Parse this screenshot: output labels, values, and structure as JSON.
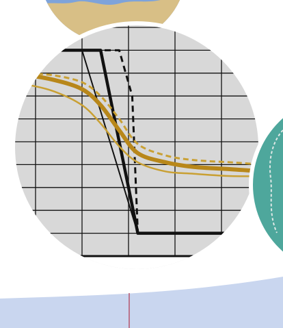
{
  "colors": {
    "background_band": "#c9d6ef",
    "map_blue": "#7ea3da",
    "map_sand": "#d8bf86",
    "map_teal": "#4ea79c",
    "plot_bg": "#d8d8d8",
    "grid": "#111111",
    "frame": "#ffffff",
    "black_series": "#111111",
    "gold_series": "#b8871a",
    "gold_light": "#c9a033",
    "pointer_line": "#b0344a",
    "tick_text": "#1f2d3a"
  },
  "chart_data": {
    "type": "line",
    "title": "",
    "xlabel": "",
    "ylabel": "",
    "x_ticks": [
      1000,
      1025,
      1050,
      1075
    ],
    "xlim": [
      957,
      1120
    ],
    "ylim": [
      0,
      1
    ],
    "grid": true,
    "series": [
      {
        "style": "black-solid-thick",
        "x": [
          957,
          1000,
          1010,
          1030,
          1120
        ],
        "y": [
          0.9,
          0.9,
          0.9,
          0.1,
          0.1
        ]
      },
      {
        "style": "black-solid-thin",
        "x": [
          957,
          1000,
          1030
        ],
        "y": [
          0.9,
          0.9,
          0.1
        ]
      },
      {
        "style": "black-dashed",
        "x": [
          957,
          1020,
          1027,
          1030
        ],
        "y": [
          0.9,
          0.9,
          0.7,
          0.1
        ]
      },
      {
        "style": "gold-solid-thick",
        "x": [
          957,
          970,
          985,
          1000,
          1010,
          1020,
          1030,
          1045,
          1060,
          1080,
          1100,
          1120
        ],
        "y": [
          0.79,
          0.79,
          0.77,
          0.73,
          0.66,
          0.55,
          0.45,
          0.41,
          0.39,
          0.38,
          0.37,
          0.37
        ]
      },
      {
        "style": "gold-dashed",
        "x": [
          957,
          970,
          985,
          1000,
          1010,
          1020,
          1030,
          1045,
          1060,
          1080,
          1100,
          1120
        ],
        "y": [
          0.81,
          0.8,
          0.79,
          0.76,
          0.7,
          0.6,
          0.49,
          0.44,
          0.42,
          0.41,
          0.4,
          0.4
        ]
      },
      {
        "style": "gold-solid-thin",
        "x": [
          957,
          970,
          985,
          1000,
          1010,
          1020,
          1030,
          1045,
          1060,
          1080,
          1100,
          1120
        ],
        "y": [
          0.76,
          0.75,
          0.72,
          0.66,
          0.58,
          0.48,
          0.41,
          0.37,
          0.36,
          0.35,
          0.35,
          0.35
        ]
      }
    ]
  }
}
